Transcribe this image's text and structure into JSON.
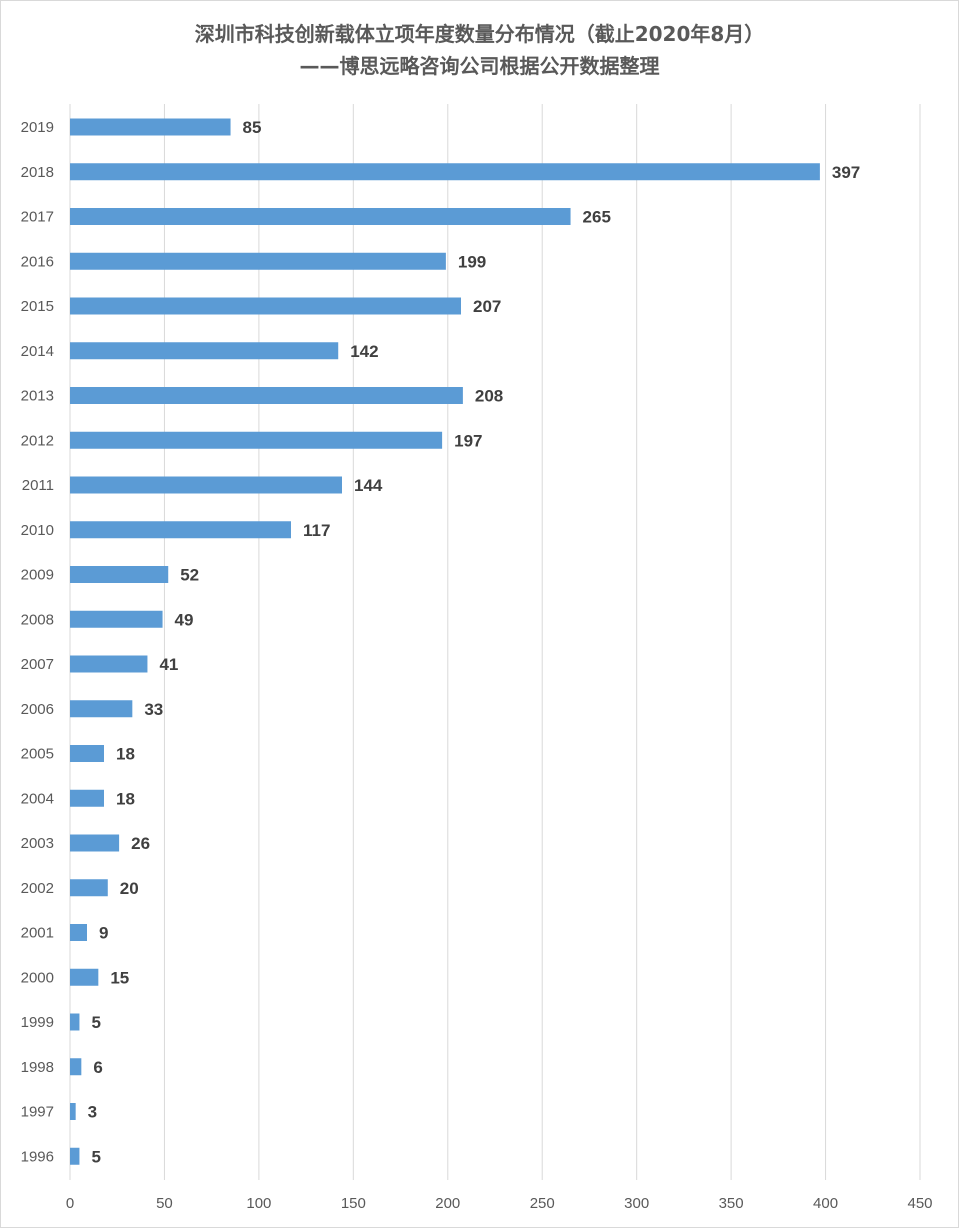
{
  "title": "深圳市科技创新载体立项年度数量分布情况（截止2020年8月）",
  "subtitle": "——博思远略咨询公司根据公开数据整理",
  "colors": {
    "bar": "#5b9bd5",
    "grid": "#d9d9d9",
    "text": "#595959",
    "label": "#404040"
  },
  "chart_data": {
    "type": "bar",
    "orientation": "horizontal",
    "title": "深圳市科技创新载体立项年度数量分布情况（截止2020年8月）",
    "subtitle": "——博思远略咨询公司根据公开数据整理",
    "categories": [
      "2019",
      "2018",
      "2017",
      "2016",
      "2015",
      "2014",
      "2013",
      "2012",
      "2011",
      "2010",
      "2009",
      "2008",
      "2007",
      "2006",
      "2005",
      "2004",
      "2003",
      "2002",
      "2001",
      "2000",
      "1999",
      "1998",
      "1997",
      "1996"
    ],
    "values": [
      85,
      397,
      265,
      199,
      207,
      142,
      208,
      197,
      144,
      117,
      52,
      49,
      41,
      33,
      18,
      18,
      26,
      20,
      9,
      15,
      5,
      6,
      3,
      5
    ],
    "xlim": [
      0,
      450
    ],
    "xticks": [
      0,
      50,
      100,
      150,
      200,
      250,
      300,
      350,
      400,
      450
    ],
    "xlabel": "",
    "ylabel": "",
    "grid": true,
    "data_labels": true
  }
}
